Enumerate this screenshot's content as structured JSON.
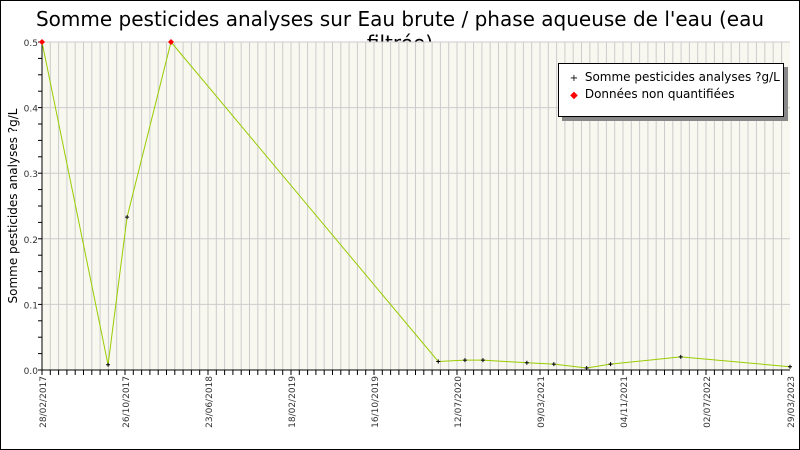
{
  "chart_data": {
    "type": "line",
    "title": "Somme pesticides analyses sur Eau brute / phase aqueuse de l'eau (eau filtrée)",
    "ylabel": "Somme pesticides analyses ?g/L",
    "xlabel": "",
    "ylim": [
      0,
      0.5
    ],
    "yticks": [
      "0.0",
      "0.1",
      "0.2",
      "0.3",
      "0.4",
      "0.5"
    ],
    "xticks": [
      "28/02/2017",
      "26/10/2017",
      "23/06/2018",
      "18/02/2019",
      "16/10/2019",
      "12/07/2020",
      "09/03/2021",
      "04/11/2021",
      "02/07/2022",
      "29/03/2023"
    ],
    "grid": true,
    "legend_position": "top-right",
    "colors": {
      "line": "#99cc00",
      "point": "#000000",
      "non_quantified": "#ff0000",
      "background": "#f8f8f0",
      "grid": "#cccccc"
    },
    "legend": [
      "Somme pesticides analyses ?g/L",
      "Données non quantifiées"
    ],
    "series": [
      {
        "name": "Somme pesticides analyses ?g/L",
        "points": [
          {
            "date": "2017-02-28",
            "value": 0.5,
            "quantified": false
          },
          {
            "date": "2017-09-07",
            "value": 0.008,
            "quantified": true
          },
          {
            "date": "2017-11-01",
            "value": 0.233,
            "quantified": true
          },
          {
            "date": "2018-03-08",
            "value": 0.5,
            "quantified": false
          },
          {
            "date": "2020-05-12",
            "value": 0.013,
            "quantified": true
          },
          {
            "date": "2020-08-04",
            "value": 0.015,
            "quantified": true
          },
          {
            "date": "2020-09-25",
            "value": 0.015,
            "quantified": true
          },
          {
            "date": "2021-01-30",
            "value": 0.011,
            "quantified": true
          },
          {
            "date": "2021-04-18",
            "value": 0.009,
            "quantified": true
          },
          {
            "date": "2021-07-22",
            "value": 0.003,
            "quantified": true
          },
          {
            "date": "2021-09-29",
            "value": 0.009,
            "quantified": true
          },
          {
            "date": "2022-04-20",
            "value": 0.02,
            "quantified": true
          },
          {
            "date": "2023-03-29",
            "value": 0.005,
            "quantified": true
          }
        ]
      }
    ]
  }
}
